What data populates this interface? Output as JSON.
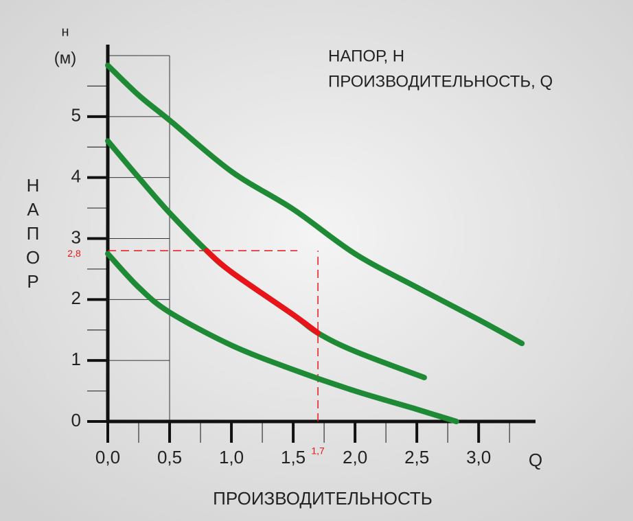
{
  "chart_data": {
    "type": "line",
    "title_lines": [
      "НАПОР, Н",
      "ПРОИЗВОДИТЕЛЬНОСТЬ, Q"
    ],
    "y_symbol": "н",
    "y_unit": "(м)",
    "y_label": "НАПОР",
    "x_label": "ПРОИЗВОДИТЕЛЬНОСТЬ",
    "x_symbol": "Q",
    "xlim": [
      0,
      3.46
    ],
    "ylim": [
      0,
      6.18
    ],
    "xticks": [
      {
        "value": 0,
        "label": "0,0"
      },
      {
        "value": 0.5,
        "label": "0,5"
      },
      {
        "value": 1,
        "label": "1,0"
      },
      {
        "value": 1.5,
        "label": "1,5"
      },
      {
        "value": 2,
        "label": "2,0"
      },
      {
        "value": 2.5,
        "label": "2,5"
      },
      {
        "value": 3,
        "label": "3,0"
      }
    ],
    "xminor": [
      0.25,
      0.75,
      1.25,
      1.75,
      2.25,
      2.75,
      3.25
    ],
    "yticks": [
      0,
      1,
      2,
      3,
      4,
      5
    ],
    "yminor": [
      0.5,
      1.5,
      2.5,
      3.5,
      4.5,
      5.5
    ],
    "grid_box": {
      "x": 0.5,
      "top": 6
    },
    "series": [
      {
        "color": "#1f8a35",
        "x": [
          0,
          0.25,
          0.5,
          1.0,
          1.5,
          2.0,
          2.5,
          3.0,
          3.35
        ],
        "values": [
          5.84,
          5.35,
          4.94,
          4.1,
          3.48,
          2.75,
          2.2,
          1.67,
          1.28
        ]
      },
      {
        "color": "#1f8a35",
        "x": [
          0,
          0.25,
          0.5,
          0.8,
          1.0,
          1.5,
          1.7,
          2.0,
          2.56
        ],
        "values": [
          4.6,
          4.0,
          3.42,
          2.8,
          2.45,
          1.75,
          1.45,
          1.15,
          0.72
        ]
      },
      {
        "color": "#1f8a35",
        "x": [
          0,
          0.25,
          0.5,
          1.0,
          1.5,
          2.0,
          2.5,
          2.82
        ],
        "values": [
          2.75,
          2.2,
          1.79,
          1.25,
          0.85,
          0.5,
          0.2,
          0
        ]
      },
      {
        "color": "#e8141a",
        "x": [
          0.8,
          1.0,
          1.5,
          1.7
        ],
        "values": [
          2.8,
          2.45,
          1.75,
          1.45
        ]
      }
    ],
    "h_ref": {
      "value": 2.8,
      "label": "2,8"
    },
    "q_ref": {
      "value": 1.7,
      "label": "1,7"
    },
    "ref_color": "#e8141a"
  }
}
